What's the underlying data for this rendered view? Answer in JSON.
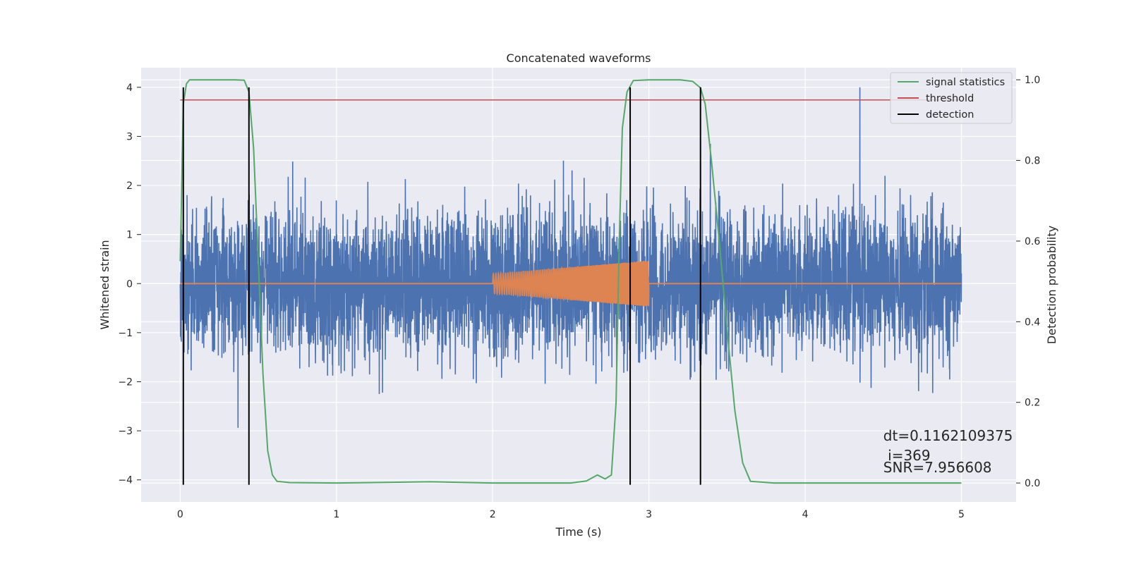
{
  "chart_data": {
    "type": "line",
    "title": "Concatenated waveforms",
    "xlabel": "Time (s)",
    "ylabel_left": "Whitened strain",
    "ylabel_right": "Detection probability",
    "xlim": [
      -0.25,
      5.35
    ],
    "ylim_left": [
      -4.45,
      4.4
    ],
    "ylim_right": [
      -0.047,
      1.03
    ],
    "grid": true,
    "x_ticks": [
      0,
      1,
      2,
      3,
      4,
      5
    ],
    "y_left_ticks": [
      -4,
      -3,
      -2,
      -1,
      0,
      1,
      2,
      3,
      4
    ],
    "y_right_ticks": [
      0.0,
      0.2,
      0.4,
      0.6,
      0.8,
      1.0
    ],
    "y_right_tick_labels": [
      "0.0",
      "0.2",
      "0.4",
      "0.6",
      "0.8",
      "1.0"
    ],
    "y_left_tick_labels": [
      "−4",
      "−3",
      "−2",
      "−1",
      "0",
      "1",
      "2",
      "3",
      "4"
    ],
    "legend": {
      "position": "top-right",
      "entries": [
        {
          "label": "signal statistics",
          "color": "#55a868"
        },
        {
          "label": "threshold",
          "color": "#c44e52"
        },
        {
          "label": "detection",
          "color": "#000000"
        }
      ]
    },
    "noise": {
      "color": "#4c72b0",
      "x_range": [
        0,
        5
      ],
      "sigma": 0.72,
      "peak": 4.0,
      "peak_at": 4.35
    },
    "chirp": {
      "color": "#dd8452",
      "x_range": [
        2.0,
        3.0
      ],
      "amplitude_start": 0.2,
      "amplitude_end": 0.47,
      "flat_x_range": [
        0,
        5
      ]
    },
    "signal_statistics": {
      "color": "#55a868",
      "axis": "right",
      "x": [
        0,
        0.02,
        0.04,
        0.06,
        0.1,
        0.2,
        0.35,
        0.41,
        0.44,
        0.47,
        0.5,
        0.53,
        0.56,
        0.59,
        0.62,
        0.7,
        1.0,
        1.6,
        2.0,
        2.5,
        2.6,
        2.67,
        2.72,
        2.76,
        2.79,
        2.81,
        2.83,
        2.86,
        2.9,
        3.0,
        3.2,
        3.28,
        3.33,
        3.36,
        3.4,
        3.45,
        3.5,
        3.55,
        3.6,
        3.65,
        3.8,
        4.5,
        5.0
      ],
      "y": [
        0.55,
        0.94,
        0.99,
        1.0,
        1.0,
        1.0,
        1.0,
        0.999,
        0.97,
        0.83,
        0.55,
        0.27,
        0.08,
        0.02,
        0.004,
        0.001,
        0.0,
        0.003,
        0.0,
        0.0,
        0.005,
        0.02,
        0.01,
        0.02,
        0.2,
        0.6,
        0.88,
        0.97,
        0.998,
        1.0,
        1.0,
        0.996,
        0.98,
        0.94,
        0.8,
        0.6,
        0.38,
        0.18,
        0.05,
        0.004,
        0.0,
        0.0,
        0.0
      ]
    },
    "threshold": {
      "color": "#c44e52",
      "axis": "right",
      "x_range": [
        0,
        5
      ],
      "value": 0.95
    },
    "detections": {
      "color": "#000000",
      "axis": "left",
      "x": [
        0.02,
        0.44,
        2.88,
        3.33
      ],
      "y_range": [
        -4.1,
        4.0
      ]
    },
    "annotations": [
      {
        "text": "dt=0.1162109375",
        "x": 4.5,
        "y": -3.2
      },
      {
        "text": " i=369",
        "x": 4.5,
        "y": -3.6
      },
      {
        "text": "SNR=7.956608",
        "x": 4.5,
        "y": -3.85
      }
    ]
  }
}
